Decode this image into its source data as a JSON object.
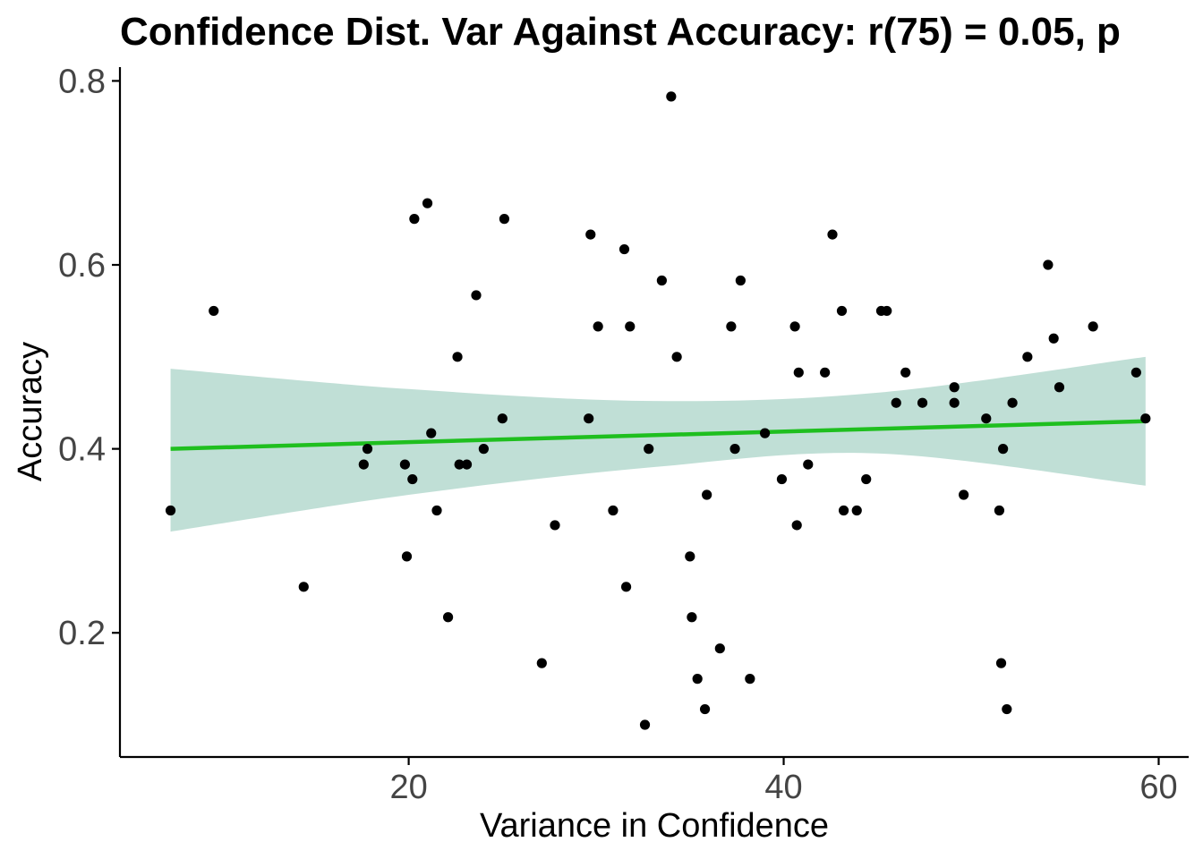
{
  "chart_data": {
    "type": "scatter",
    "title": "Confidence Dist. Var Against Accuracy: r(75) = 0.05, p",
    "xlabel": "Variance in Confidence",
    "ylabel": "Accuracy",
    "xlim": [
      4.6,
      61.6
    ],
    "ylim": [
      0.065,
      0.815
    ],
    "x_ticks": [
      20,
      40,
      60
    ],
    "x_tick_labels": [
      "20",
      "40",
      "60"
    ],
    "y_ticks": [
      0.2,
      0.4,
      0.6,
      0.8
    ],
    "y_tick_labels": [
      "0.2",
      "0.4",
      "0.6",
      "0.8"
    ],
    "grid": false,
    "colors": {
      "points": "#000000",
      "fit_line": "#1fbf1f",
      "ribbon": "#8cc5b5"
    },
    "series": [
      {
        "points": [
          [
            7.3,
            0.333
          ],
          [
            9.6,
            0.55
          ],
          [
            14.4,
            0.25
          ],
          [
            17.6,
            0.383
          ],
          [
            17.8,
            0.4
          ],
          [
            19.8,
            0.383
          ],
          [
            19.9,
            0.283
          ],
          [
            20.2,
            0.367
          ],
          [
            20.3,
            0.65
          ],
          [
            21.0,
            0.667
          ],
          [
            21.2,
            0.417
          ],
          [
            21.5,
            0.333
          ],
          [
            22.1,
            0.217
          ],
          [
            22.6,
            0.5
          ],
          [
            22.7,
            0.383
          ],
          [
            23.1,
            0.383
          ],
          [
            23.6,
            0.567
          ],
          [
            24.0,
            0.4
          ],
          [
            25.0,
            0.433
          ],
          [
            25.1,
            0.65
          ],
          [
            27.1,
            0.167
          ],
          [
            27.8,
            0.317
          ],
          [
            29.6,
            0.433
          ],
          [
            29.7,
            0.633
          ],
          [
            30.1,
            0.533
          ],
          [
            30.9,
            0.333
          ],
          [
            31.5,
            0.617
          ],
          [
            31.6,
            0.25
          ],
          [
            31.8,
            0.533
          ],
          [
            32.6,
            0.1
          ],
          [
            32.8,
            0.4
          ],
          [
            33.5,
            0.583
          ],
          [
            34.0,
            0.783
          ],
          [
            34.3,
            0.5
          ],
          [
            35.0,
            0.283
          ],
          [
            35.1,
            0.217
          ],
          [
            35.4,
            0.15
          ],
          [
            35.8,
            0.117
          ],
          [
            35.9,
            0.35
          ],
          [
            36.6,
            0.183
          ],
          [
            37.2,
            0.533
          ],
          [
            37.4,
            0.4
          ],
          [
            37.7,
            0.583
          ],
          [
            38.2,
            0.15
          ],
          [
            39.0,
            0.417
          ],
          [
            39.9,
            0.367
          ],
          [
            40.6,
            0.533
          ],
          [
            40.7,
            0.317
          ],
          [
            40.8,
            0.483
          ],
          [
            41.3,
            0.383
          ],
          [
            42.2,
            0.483
          ],
          [
            42.6,
            0.633
          ],
          [
            43.1,
            0.55
          ],
          [
            43.2,
            0.333
          ],
          [
            43.9,
            0.333
          ],
          [
            44.4,
            0.367
          ],
          [
            45.2,
            0.55
          ],
          [
            45.5,
            0.55
          ],
          [
            46.0,
            0.45
          ],
          [
            46.5,
            0.483
          ],
          [
            47.4,
            0.45
          ],
          [
            49.1,
            0.467
          ],
          [
            49.1,
            0.45
          ],
          [
            49.6,
            0.35
          ],
          [
            50.8,
            0.433
          ],
          [
            51.5,
            0.333
          ],
          [
            51.6,
            0.167
          ],
          [
            51.7,
            0.4
          ],
          [
            51.9,
            0.117
          ],
          [
            52.2,
            0.45
          ],
          [
            53.0,
            0.5
          ],
          [
            54.1,
            0.6
          ],
          [
            54.4,
            0.52
          ],
          [
            54.7,
            0.467
          ],
          [
            56.5,
            0.533
          ],
          [
            58.8,
            0.483
          ],
          [
            59.3,
            0.433
          ]
        ]
      }
    ],
    "fit": {
      "x_range": [
        7.3,
        59.3
      ],
      "y_start": 0.4,
      "y_end": 0.43,
      "ci_upper": [
        [
          7.3,
          0.487
        ],
        [
          20,
          0.465
        ],
        [
          33,
          0.452
        ],
        [
          45,
          0.461
        ],
        [
          59.3,
          0.5
        ]
      ],
      "ci_lower": [
        [
          7.3,
          0.31
        ],
        [
          20,
          0.35
        ],
        [
          33,
          0.38
        ],
        [
          45,
          0.395
        ],
        [
          59.3,
          0.36
        ]
      ]
    }
  }
}
